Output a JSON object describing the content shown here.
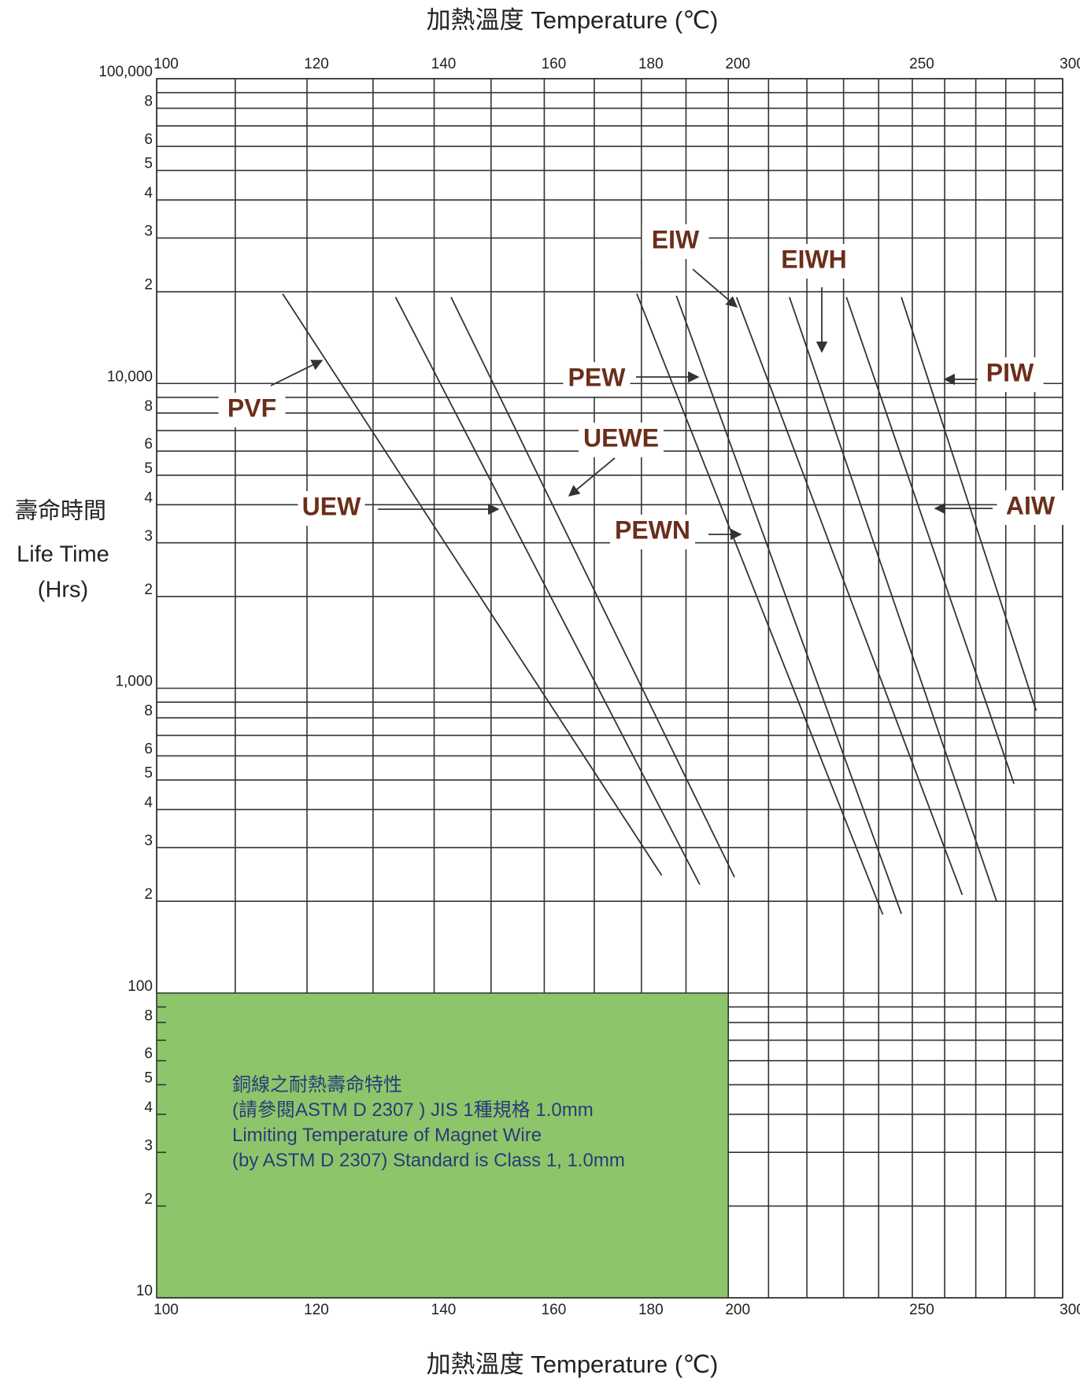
{
  "chart_data": {
    "type": "line",
    "title": "加熱溫度  Temperature  (℃)",
    "ylabel": [
      "壽命時間",
      "Life Time",
      "(Hrs)"
    ],
    "xscale": "log",
    "yscale": "log",
    "grid": true,
    "xlim": [
      100,
      300
    ],
    "ylim": [
      10,
      100000
    ],
    "xticks": [
      100,
      120,
      140,
      160,
      180,
      200,
      250,
      300
    ],
    "xminor": [
      110,
      130,
      150,
      170,
      190,
      210,
      220,
      230,
      240,
      260,
      270,
      280,
      290
    ],
    "yticks": [
      {
        "value": 100000,
        "label": "100,000"
      },
      {
        "value": 80000,
        "label": "8"
      },
      {
        "value": 60000,
        "label": "6"
      },
      {
        "value": 50000,
        "label": "5"
      },
      {
        "value": 40000,
        "label": "4"
      },
      {
        "value": 30000,
        "label": "3"
      },
      {
        "value": 20000,
        "label": "2"
      },
      {
        "value": 10000,
        "label": "10,000"
      },
      {
        "value": 8000,
        "label": "8"
      },
      {
        "value": 6000,
        "label": "6"
      },
      {
        "value": 5000,
        "label": "5"
      },
      {
        "value": 4000,
        "label": "4"
      },
      {
        "value": 3000,
        "label": "3"
      },
      {
        "value": 2000,
        "label": "2"
      },
      {
        "value": 1000,
        "label": "1,000"
      },
      {
        "value": 800,
        "label": "8"
      },
      {
        "value": 600,
        "label": "6"
      },
      {
        "value": 500,
        "label": "5"
      },
      {
        "value": 400,
        "label": "4"
      },
      {
        "value": 300,
        "label": "3"
      },
      {
        "value": 200,
        "label": "2"
      },
      100,
      {
        "value": 80,
        "label": "8"
      },
      {
        "value": 60,
        "label": "6"
      },
      {
        "value": 50,
        "label": "5"
      },
      {
        "value": 40,
        "label": "4"
      },
      {
        "value": 30,
        "label": "3"
      },
      {
        "value": 20,
        "label": "2"
      },
      10
    ],
    "yminor": [
      90000,
      70000,
      9000,
      7000,
      900,
      700,
      90,
      70
    ],
    "color": "#333333",
    "series": [
      {
        "name": "PVF",
        "x": [
          116.5,
          184.5
        ],
        "values": [
          19700,
          243
        ]
      },
      {
        "name": "UEW",
        "x": [
          133.6,
          193.2
        ],
        "values": [
          19200,
          227
        ]
      },
      {
        "name": "UEWE",
        "x": [
          142.9,
          201.5
        ],
        "values": [
          19200,
          240
        ]
      },
      {
        "name": "PEWN",
        "x": [
          179,
          241.2
        ],
        "values": [
          19700,
          181
        ]
      },
      {
        "name": "PEW",
        "x": [
          187.8,
          246.7
        ],
        "values": [
          19400,
          182
        ]
      },
      {
        "name": "EIW",
        "x": [
          202,
          265.6
        ],
        "values": [
          19200,
          210
        ]
      },
      {
        "name": "EIWH",
        "x": [
          215.4,
          276.9
        ],
        "values": [
          19200,
          200
        ]
      },
      {
        "name": "AIW",
        "x": [
          230.8,
          282.8
        ],
        "values": [
          19200,
          486
        ]
      },
      {
        "name": "PIW",
        "x": [
          246.7,
          290.5
        ],
        "values": [
          19200,
          845
        ]
      }
    ],
    "highlight": {
      "xlim": [
        100,
        200
      ],
      "ylim": [
        10,
        100
      ],
      "color": "#8dc66a",
      "text": [
        "銅線之耐熱壽命特性",
        "(請參閱ASTM D 2307 ) JIS 1種規格 1.0mm",
        "Limiting Temperature of Magnet Wire",
        "(by ASTM D 2307) Standard is Class 1, 1.0mm"
      ]
    }
  }
}
